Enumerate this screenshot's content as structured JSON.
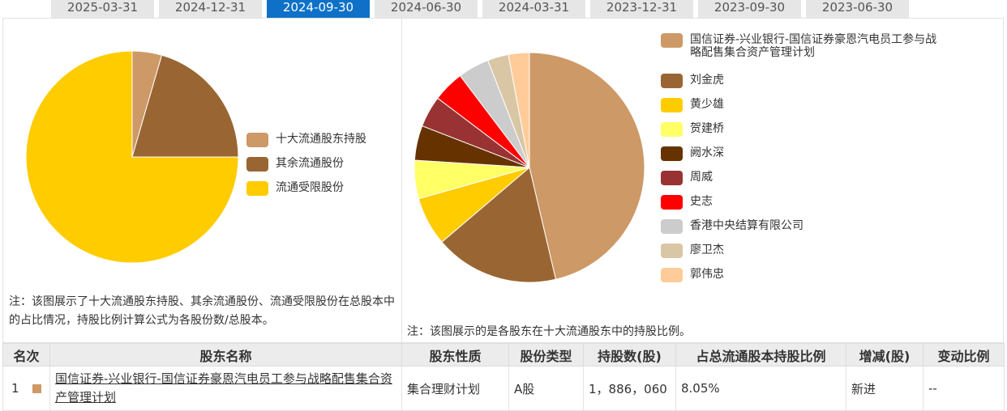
{
  "tabs": [
    {
      "label": "2025-03-31",
      "active": false
    },
    {
      "label": "2024-12-31",
      "active": false
    },
    {
      "label": "2024-09-30",
      "active": true
    },
    {
      "label": "2024-06-30",
      "active": false
    },
    {
      "label": "2024-03-31",
      "active": false
    },
    {
      "label": "2023-12-31",
      "active": false
    },
    {
      "label": "2023-09-30",
      "active": false
    },
    {
      "label": "2023-06-30",
      "active": false
    }
  ],
  "chart_data": [
    {
      "type": "pie",
      "categories": [
        "十大流通股东持股",
        "其余流通股份",
        "流通受限股份"
      ],
      "values": [
        4.5,
        20.5,
        75.0
      ],
      "colors": [
        "#cd9966",
        "#996633",
        "#ffcc00"
      ],
      "legend": "right"
    },
    {
      "type": "pie",
      "categories": [
        "国信证券-兴业银行-国信证券豪恩汽电员工参与战略配售集合资产管理计划",
        "刘金虎",
        "黄少雄",
        "贺建桥",
        "阙水深",
        "周威",
        "史志",
        "香港中央结算有限公司",
        "廖卫杰",
        "郭伟忠"
      ],
      "values": [
        47.3,
        17.8,
        7.0,
        5.5,
        5.0,
        4.5,
        4.5,
        4.5,
        3.0,
        3.0
      ],
      "colors": [
        "#cd9966",
        "#996633",
        "#ffcc00",
        "#ffff66",
        "#663300",
        "#993333",
        "#ff0000",
        "#cccccc",
        "#d9c6a5",
        "#ffcc99"
      ],
      "legend": "right"
    }
  ],
  "notes": {
    "left": "注：该图展示了十大流通股东持股、其余流通股份、流通受限股份在总股本中的占比情况，持股比例计算公式为各股份数/总股本。",
    "right": "注：该图展示的是各股东在十大流通股东中的持股比例。"
  },
  "table": {
    "headers": [
      "名次",
      "股东名称",
      "股东性质",
      "股份类型",
      "持股数(股)",
      "占总流通股本持股比例",
      "增减(股)",
      "变动比例"
    ],
    "rows": [
      {
        "rank": "1",
        "swatch": "#cd9966",
        "name": "国信证券-兴业银行-国信证券豪恩汽电员工参与战略配售集合资产管理计划",
        "nature": "集合理财计划",
        "share_type": "A股",
        "holding": "1，886，060",
        "ratio": "8.05%",
        "change": "新进",
        "change_ratio": "--"
      }
    ]
  }
}
